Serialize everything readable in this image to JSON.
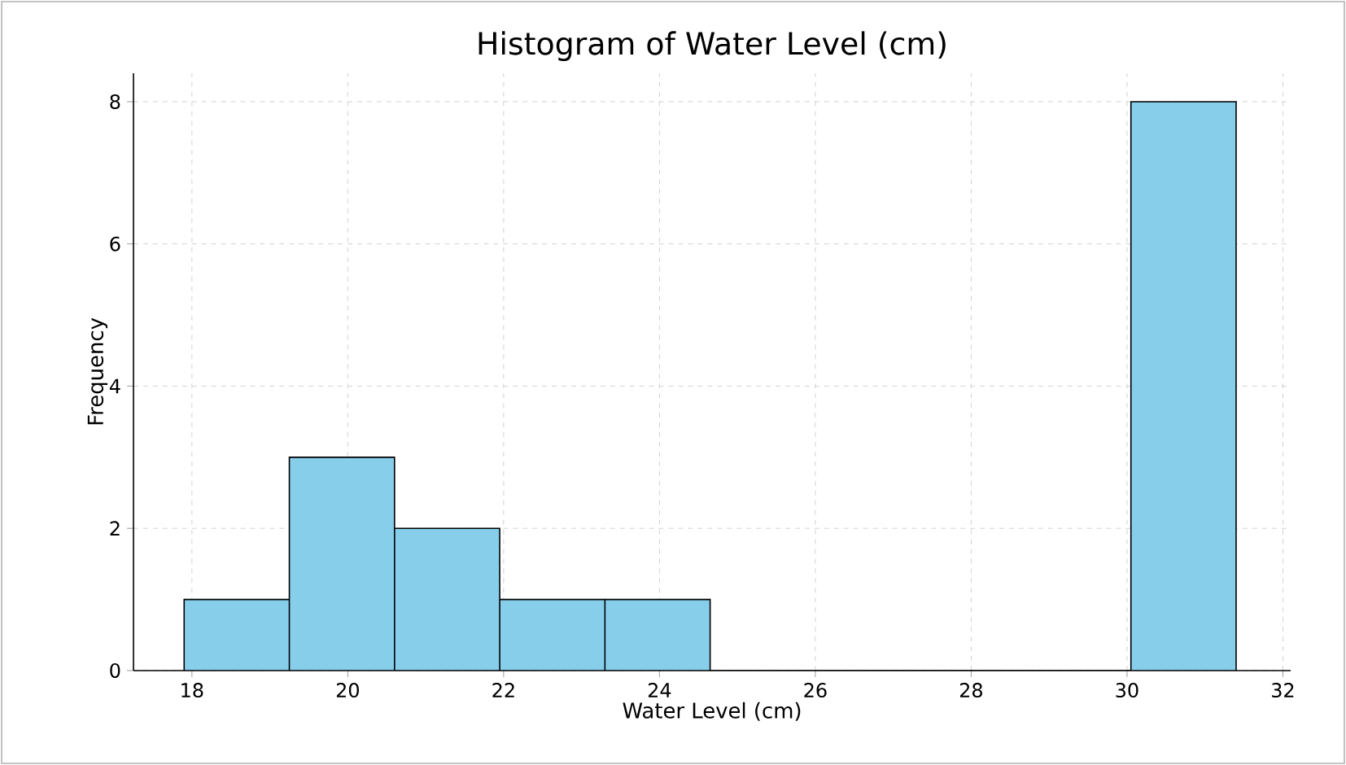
{
  "chart_data": {
    "type": "histogram",
    "title": "Histogram of Water Level (cm)",
    "xlabel": "Water Level (cm)",
    "ylabel": "Frequency",
    "bins": [
      17.9,
      19.25,
      20.6,
      21.95,
      23.3,
      24.65,
      26.0,
      27.35,
      28.7,
      30.05,
      31.4
    ],
    "values": [
      1,
      3,
      2,
      1,
      1,
      0,
      0,
      0,
      0,
      8
    ],
    "color": "#87ceeb",
    "xlim": [
      17.25,
      32.1
    ],
    "ylim": [
      0,
      8.4
    ],
    "xticks": [
      18,
      20,
      22,
      24,
      26,
      28,
      30,
      32
    ],
    "yticks": [
      0,
      2,
      4,
      6,
      8
    ],
    "grid": true
  }
}
